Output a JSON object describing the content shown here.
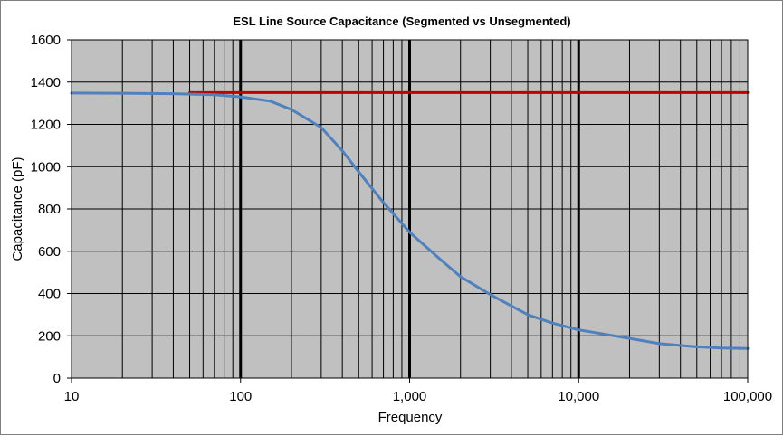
{
  "chart_data": {
    "type": "line",
    "title": "ESL Line Source Capacitance (Segmented vs Unsegmented)",
    "xlabel": "Frequency",
    "ylabel": "Capacitance (pF)",
    "x_scale": "log",
    "xlim": [
      10,
      100000
    ],
    "ylim": [
      0,
      1600
    ],
    "x_ticks": [
      10,
      100,
      1000,
      10000,
      100000
    ],
    "x_tick_labels": [
      "10",
      "100",
      "1,000",
      "10,000",
      "100,000"
    ],
    "y_ticks": [
      0,
      200,
      400,
      600,
      800,
      1000,
      1200,
      1400,
      1600
    ],
    "y_tick_labels": [
      "0",
      "200",
      "400",
      "600",
      "800",
      "1000",
      "1200",
      "1400",
      "1600"
    ],
    "grid": true,
    "legend": "none",
    "plot_background": "#c0c0c0",
    "series": [
      {
        "color": "#c00000",
        "x": [
          50,
          100000
        ],
        "y": [
          1350,
          1350
        ]
      },
      {
        "color": "#4f81bd",
        "x": [
          10,
          20,
          40,
          70,
          100,
          150,
          200,
          300,
          400,
          500,
          700,
          1000,
          1500,
          2000,
          3000,
          5000,
          7000,
          10000,
          20000,
          30000,
          50000,
          70000,
          100000
        ],
        "y": [
          1348,
          1347,
          1345,
          1340,
          1330,
          1310,
          1270,
          1185,
          1075,
          975,
          830,
          690,
          565,
          480,
          395,
          300,
          260,
          228,
          188,
          163,
          148,
          142,
          140
        ]
      }
    ]
  }
}
